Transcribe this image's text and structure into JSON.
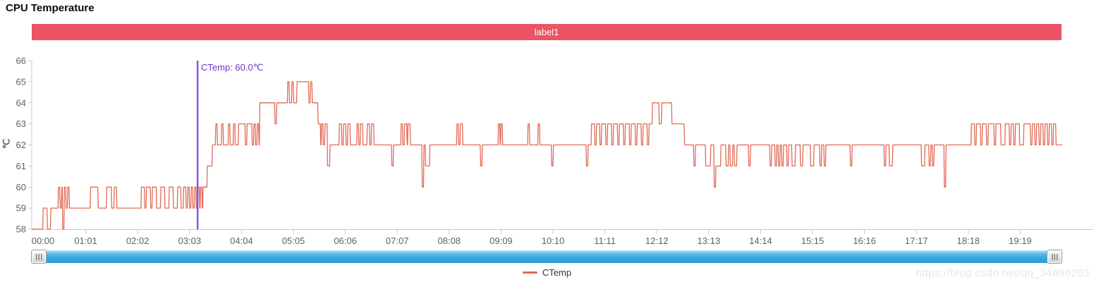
{
  "page": {
    "title": "CPU Temperature",
    "watermark": "https://blog.csdn.net/qq_34696203"
  },
  "banner": {
    "label": "label1"
  },
  "legend": {
    "items": [
      {
        "label": "CTemp"
      }
    ]
  },
  "colors": {
    "banner": "#ea5464",
    "series_line": "#e16a56",
    "marker_line": "#8b55e3",
    "marker_text": "#6a35c9",
    "axis_line": "#c4c9d4",
    "tick_text": "#5a6170",
    "scrollbar_blue": "#36a4de"
  },
  "chart_data": {
    "type": "line",
    "title": "CPU Temperature",
    "ylabel": "℃",
    "ylim": [
      58,
      66
    ],
    "y_ticks": [
      58,
      59,
      60,
      61,
      62,
      63,
      64,
      65,
      66
    ],
    "x_labels": [
      "00:00",
      "01:01",
      "02:02",
      "03:03",
      "04:04",
      "05:05",
      "06:06",
      "07:07",
      "08:08",
      "09:09",
      "10:10",
      "11:11",
      "12:12",
      "13:13",
      "14:14",
      "15:15",
      "16:16",
      "17:17",
      "18:18",
      "19:19"
    ],
    "x_minutes_per_label": 61,
    "grid": false,
    "legend_position": "bottom",
    "series_name": "CTemp",
    "mark_line": {
      "label": "CTemp: 60.0℃",
      "minute": 196,
      "value": 60.0
    },
    "x_total_minutes": 1217,
    "steps": [
      [
        0,
        58
      ],
      [
        13,
        59
      ],
      [
        18,
        58
      ],
      [
        22,
        59
      ],
      [
        31,
        60
      ],
      [
        33,
        59
      ],
      [
        35,
        60
      ],
      [
        36,
        58
      ],
      [
        38,
        60
      ],
      [
        40,
        59
      ],
      [
        42,
        60
      ],
      [
        44,
        59
      ],
      [
        69,
        60
      ],
      [
        78,
        59
      ],
      [
        88,
        60
      ],
      [
        94,
        59
      ],
      [
        97,
        60
      ],
      [
        100,
        59
      ],
      [
        129,
        60
      ],
      [
        133,
        59
      ],
      [
        135,
        60
      ],
      [
        140,
        59
      ],
      [
        142,
        60
      ],
      [
        147,
        59
      ],
      [
        152,
        60
      ],
      [
        157,
        59
      ],
      [
        162,
        60
      ],
      [
        167,
        59
      ],
      [
        172,
        60
      ],
      [
        176,
        59
      ],
      [
        179,
        60
      ],
      [
        182,
        59
      ],
      [
        184,
        60
      ],
      [
        186,
        59
      ],
      [
        188,
        60
      ],
      [
        190,
        59
      ],
      [
        192,
        60
      ],
      [
        194,
        59
      ],
      [
        196,
        60
      ],
      [
        198,
        59
      ],
      [
        199,
        60
      ],
      [
        201,
        59
      ],
      [
        202,
        60
      ],
      [
        207,
        61
      ],
      [
        213,
        62
      ],
      [
        217,
        63
      ],
      [
        219,
        62
      ],
      [
        224,
        63
      ],
      [
        226,
        62
      ],
      [
        232,
        63
      ],
      [
        234,
        62
      ],
      [
        238,
        63
      ],
      [
        240,
        62
      ],
      [
        244,
        63
      ],
      [
        252,
        62
      ],
      [
        254,
        63
      ],
      [
        260,
        62
      ],
      [
        262,
        63
      ],
      [
        264,
        62
      ],
      [
        266,
        63
      ],
      [
        268,
        62
      ],
      [
        269,
        64
      ],
      [
        287,
        63
      ],
      [
        289,
        64
      ],
      [
        302,
        65
      ],
      [
        304,
        64
      ],
      [
        307,
        65
      ],
      [
        309,
        64
      ],
      [
        313,
        65
      ],
      [
        327,
        64
      ],
      [
        329,
        65
      ],
      [
        331,
        64
      ],
      [
        338,
        63
      ],
      [
        341,
        62
      ],
      [
        342,
        63
      ],
      [
        344,
        62
      ],
      [
        346,
        63
      ],
      [
        349,
        61
      ],
      [
        352,
        62
      ],
      [
        363,
        63
      ],
      [
        366,
        62
      ],
      [
        368,
        63
      ],
      [
        371,
        62
      ],
      [
        373,
        63
      ],
      [
        376,
        62
      ],
      [
        384,
        63
      ],
      [
        386,
        62
      ],
      [
        388,
        63
      ],
      [
        391,
        62
      ],
      [
        396,
        63
      ],
      [
        399,
        62
      ],
      [
        401,
        63
      ],
      [
        404,
        62
      ],
      [
        425,
        61
      ],
      [
        427,
        62
      ],
      [
        436,
        63
      ],
      [
        438,
        62
      ],
      [
        440,
        63
      ],
      [
        443,
        62
      ],
      [
        444,
        63
      ],
      [
        447,
        62
      ],
      [
        461,
        60
      ],
      [
        463,
        62
      ],
      [
        465,
        61
      ],
      [
        470,
        62
      ],
      [
        502,
        63
      ],
      [
        504,
        62
      ],
      [
        506,
        63
      ],
      [
        509,
        62
      ],
      [
        530,
        61
      ],
      [
        532,
        62
      ],
      [
        551,
        63
      ],
      [
        553,
        62
      ],
      [
        554,
        63
      ],
      [
        556,
        62
      ],
      [
        586,
        63
      ],
      [
        588,
        62
      ],
      [
        598,
        63
      ],
      [
        600,
        62
      ],
      [
        614,
        61
      ],
      [
        616,
        62
      ],
      [
        655,
        61
      ],
      [
        657,
        62
      ],
      [
        661,
        63
      ],
      [
        665,
        62
      ],
      [
        667,
        63
      ],
      [
        671,
        62
      ],
      [
        673,
        63
      ],
      [
        678,
        62
      ],
      [
        680,
        63
      ],
      [
        685,
        62
      ],
      [
        687,
        63
      ],
      [
        692,
        62
      ],
      [
        694,
        63
      ],
      [
        699,
        62
      ],
      [
        701,
        63
      ],
      [
        706,
        62
      ],
      [
        708,
        63
      ],
      [
        713,
        62
      ],
      [
        715,
        63
      ],
      [
        720,
        62
      ],
      [
        722,
        63
      ],
      [
        727,
        62
      ],
      [
        729,
        63
      ],
      [
        733,
        64
      ],
      [
        741,
        63
      ],
      [
        744,
        64
      ],
      [
        756,
        63
      ],
      [
        771,
        62
      ],
      [
        782,
        61
      ],
      [
        784,
        62
      ],
      [
        796,
        61
      ],
      [
        802,
        62
      ],
      [
        806,
        60
      ],
      [
        808,
        61
      ],
      [
        814,
        62
      ],
      [
        820,
        61
      ],
      [
        823,
        62
      ],
      [
        825,
        61
      ],
      [
        828,
        62
      ],
      [
        830,
        61
      ],
      [
        833,
        62
      ],
      [
        847,
        61
      ],
      [
        849,
        62
      ],
      [
        872,
        61
      ],
      [
        874,
        62
      ],
      [
        878,
        61
      ],
      [
        880,
        62
      ],
      [
        882,
        61
      ],
      [
        884,
        62
      ],
      [
        886,
        61
      ],
      [
        888,
        62
      ],
      [
        892,
        61
      ],
      [
        894,
        62
      ],
      [
        898,
        61
      ],
      [
        902,
        62
      ],
      [
        908,
        61
      ],
      [
        911,
        62
      ],
      [
        920,
        61
      ],
      [
        924,
        62
      ],
      [
        931,
        61
      ],
      [
        933,
        62
      ],
      [
        936,
        61
      ],
      [
        938,
        62
      ],
      [
        967,
        61
      ],
      [
        969,
        62
      ],
      [
        1007,
        61
      ],
      [
        1009,
        62
      ],
      [
        1013,
        61
      ],
      [
        1017,
        62
      ],
      [
        1051,
        61
      ],
      [
        1055,
        62
      ],
      [
        1060,
        61
      ],
      [
        1062,
        62
      ],
      [
        1064,
        61
      ],
      [
        1066,
        62
      ],
      [
        1078,
        60
      ],
      [
        1080,
        62
      ],
      [
        1110,
        63
      ],
      [
        1114,
        62
      ],
      [
        1116,
        63
      ],
      [
        1121,
        62
      ],
      [
        1123,
        63
      ],
      [
        1128,
        62
      ],
      [
        1130,
        63
      ],
      [
        1137,
        62
      ],
      [
        1139,
        63
      ],
      [
        1145,
        62
      ],
      [
        1150,
        63
      ],
      [
        1155,
        62
      ],
      [
        1157,
        63
      ],
      [
        1160,
        62
      ],
      [
        1162,
        63
      ],
      [
        1167,
        62
      ],
      [
        1172,
        63
      ],
      [
        1180,
        62
      ],
      [
        1182,
        63
      ],
      [
        1185,
        62
      ],
      [
        1187,
        63
      ],
      [
        1190,
        62
      ],
      [
        1192,
        63
      ],
      [
        1195,
        62
      ],
      [
        1197,
        63
      ],
      [
        1200,
        62
      ],
      [
        1202,
        63
      ],
      [
        1205,
        62
      ],
      [
        1207,
        63
      ],
      [
        1210,
        62
      ],
      [
        1217,
        62
      ]
    ]
  }
}
